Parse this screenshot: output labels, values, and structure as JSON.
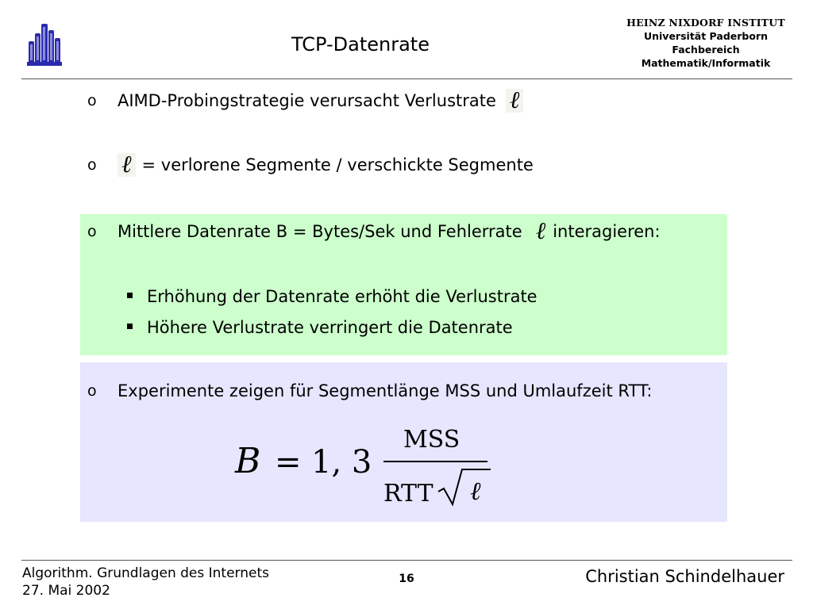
{
  "header": {
    "title": "TCP-Datenrate",
    "institute": {
      "name": "HEINZ NIXDORF INSTITUT",
      "line1": "Universität Paderborn",
      "line2": "Fachbereich",
      "line3": "Mathematik/Informatik"
    },
    "logo_icon": "university-paderborn-logo-icon"
  },
  "bullets": {
    "marker": "o",
    "b1": "AIMD-Probingstrategie verursacht Verlustrate",
    "b2": "= verlorene Segmente / verschickte Segmente",
    "b3_before": "Mittlere Datenrate B = Bytes/Sek und Fehlerrate",
    "b3_after": "interagieren:",
    "sub1": "Erhöhung der Datenrate erhöht die Verlustrate",
    "sub2": "Höhere Verlustrate verringert die Datenrate",
    "b4": "Experimente zeigen für Segmentlänge MSS und Umlaufzeit RTT:"
  },
  "symbols": {
    "ell": "ℓ"
  },
  "formula": {
    "lhs": "B",
    "eq": "=",
    "coef": "1, 3",
    "numerator": "MSS",
    "denominator": "RTT",
    "radicand": "ℓ"
  },
  "footer": {
    "course": "Algorithm. Grundlagen des Internets",
    "date": "27. Mai 2002",
    "page": "16",
    "author": "Christian Schindelhauer"
  },
  "colors": {
    "green_box": "#ccffcc",
    "blue_box": "#e6e6ff",
    "logo_blue": "#2a2ab0"
  }
}
